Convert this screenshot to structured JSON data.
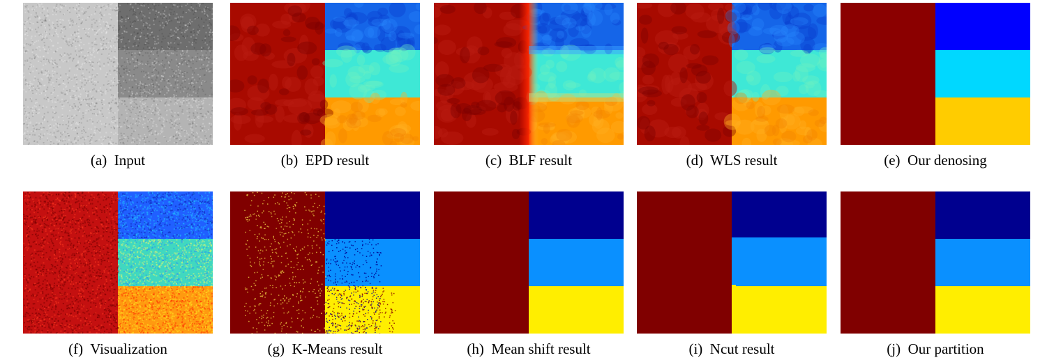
{
  "panels": [
    {
      "caption": "(a)  Input",
      "kind": "gray"
    },
    {
      "caption": "(b)  EPD result",
      "kind": "smooth_epd"
    },
    {
      "caption": "(c)  BLF result",
      "kind": "smooth_blf"
    },
    {
      "caption": "(d)  WLS result",
      "kind": "smooth_wls"
    },
    {
      "caption": "(e)  Our denosing",
      "kind": "flat_smooth"
    },
    {
      "caption": "(f)  Visualization",
      "kind": "noisy_color"
    },
    {
      "caption": "(g)  K-Means result",
      "kind": "kmeans"
    },
    {
      "caption": "(h)  Mean shift result",
      "kind": "flat_partition"
    },
    {
      "caption": "(i)  Ncut result",
      "kind": "ncut"
    },
    {
      "caption": "(j)  Our partition",
      "kind": "flat_partition"
    }
  ],
  "colors": {
    "gray_left": "#c8c8c8",
    "gray_top": "#6e6e6e",
    "gray_mid": "#8a8a8a",
    "gray_bottom": "#b4b4b4",
    "dark_red": "#8b0000",
    "red": "#a80a00",
    "smooth_top": "#1565e8",
    "smooth_mid": "#3ee8d6",
    "smooth_bottom": "#ff9a00",
    "flat_top": "#0000ff",
    "flat_mid": "#00d8ff",
    "flat_bottom": "#ffcc00",
    "part_red": "#800000",
    "part_top": "#00008f",
    "part_mid": "#0a90ff",
    "part_bottom": "#ffee00",
    "vis_left": "#c41010",
    "vis_top": "#2060ff",
    "vis_mid": "#40d8c0",
    "vis_bottom": "#ff9a10"
  }
}
